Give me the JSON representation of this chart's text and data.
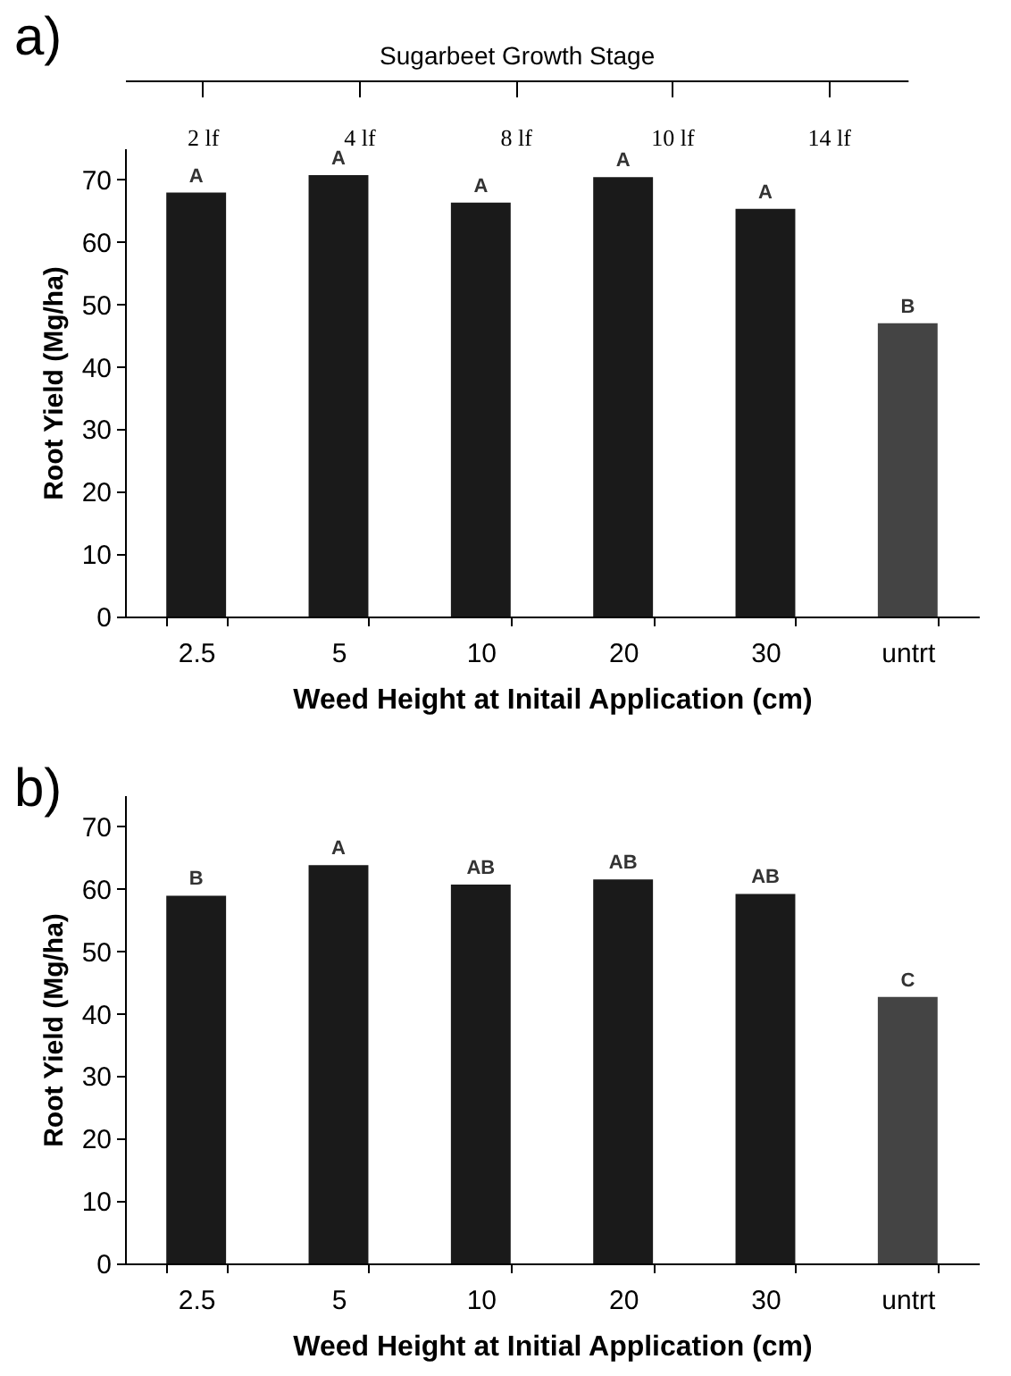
{
  "chart_data": [
    {
      "type": "bar",
      "xlabel": "Weed Height at Initail Application (cm)",
      "ylabel": "Root Yield (Mg/ha)",
      "categories": [
        "2.5",
        "5",
        "10",
        "20",
        "30",
        "untrt"
      ],
      "values": [
        67.9,
        70.7,
        66.3,
        70.4,
        65.3,
        47.0
      ],
      "colors": [
        "#1a1a1a",
        "#1a1a1a",
        "#1a1a1a",
        "#1a1a1a",
        "#1a1a1a",
        "#444444"
      ],
      "ylim": [
        0,
        75
      ],
      "yticks": [
        0,
        10,
        20,
        30,
        40,
        50,
        60,
        70
      ],
      "x2label": "Sugarbeet Growth Stage",
      "annotations": [
        "a)",
        "2 lf",
        "4 lf",
        "8 lf",
        "10 lf",
        "14 lf",
        {
          "text": "A",
          "x": "2.5",
          "y": 67.9
        },
        {
          "text": "A",
          "x": "5",
          "y": 70.7
        },
        {
          "text": "A",
          "x": "10",
          "y": 66.3
        },
        {
          "text": "A",
          "x": "20",
          "y": 70.4
        },
        {
          "text": "A",
          "x": "30",
          "y": 65.3
        },
        {
          "text": "B",
          "x": "untrt",
          "y": 47.0
        }
      ]
    },
    {
      "type": "bar",
      "xlabel": "Weed Height at Initial Application (cm)",
      "ylabel": "Root Yield (Mg/ha)",
      "categories": [
        "2.5",
        "5",
        "10",
        "20",
        "30",
        "untrt"
      ],
      "values": [
        58.9,
        63.8,
        60.7,
        61.5,
        59.2,
        42.7
      ],
      "colors": [
        "#1a1a1a",
        "#1a1a1a",
        "#1a1a1a",
        "#1a1a1a",
        "#1a1a1a",
        "#444444"
      ],
      "ylim": [
        0,
        75
      ],
      "yticks": [
        0,
        10,
        20,
        30,
        40,
        50,
        60,
        70
      ],
      "annotations": [
        "b)",
        {
          "text": "B",
          "x": "2.5",
          "y": 58.9
        },
        {
          "text": "A",
          "x": "5",
          "y": 63.8
        },
        {
          "text": "AB",
          "x": "10",
          "y": 60.7
        },
        {
          "text": "AB",
          "x": "20",
          "y": 61.5
        },
        {
          "text": "AB",
          "x": "30",
          "y": 59.2
        },
        {
          "text": "C",
          "x": "untrt",
          "y": 42.7
        }
      ]
    }
  ]
}
